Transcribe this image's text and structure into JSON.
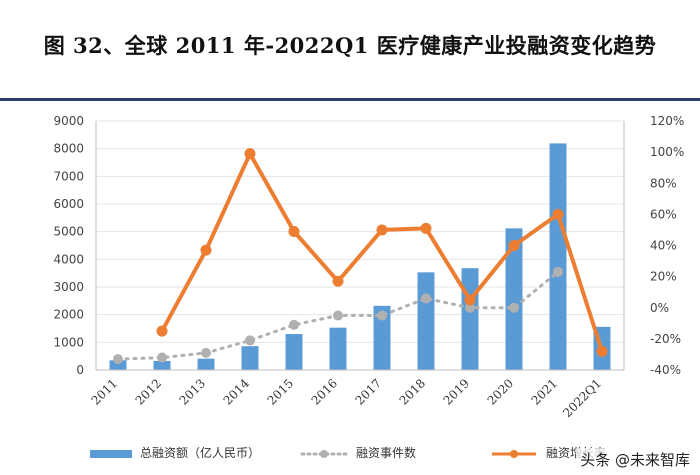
{
  "title": "图 32、全球 2011 年-2022Q1 医疗健康产业投融资变化趋势",
  "watermark": "头条 @未来智库",
  "colors": {
    "bars": "#5b9bd5",
    "events": "#b0b0b0",
    "growth": "#ed7d31",
    "rule": "#2b3d6b"
  },
  "chart_data": {
    "type": "bar",
    "categories": [
      "2011",
      "2012",
      "2013",
      "2014",
      "2015",
      "2016",
      "2017",
      "2018",
      "2019",
      "2020",
      "2021",
      "2022Q1"
    ],
    "ylim": [
      0,
      9000
    ],
    "yticks": [
      "0",
      "1000",
      "2000",
      "3000",
      "4000",
      "5000",
      "6000",
      "7000",
      "8000",
      "9000"
    ],
    "y2lim": [
      -40,
      120
    ],
    "y2ticks": [
      "-40%",
      "-20%",
      "0%",
      "20%",
      "40%",
      "60%",
      "80%",
      "100%",
      "120%"
    ],
    "legend_position": "bottom",
    "series": [
      {
        "name": "总融资额（亿人民币）",
        "type": "bar",
        "axis": "left",
        "values": [
          350,
          330,
          410,
          860,
          1300,
          1530,
          2320,
          3530,
          3680,
          5120,
          8190,
          1560
        ]
      },
      {
        "name": "融资事件数",
        "type": "line",
        "axis": "right",
        "style": "dotted",
        "values": [
          -33,
          -32,
          -29,
          -21,
          -11,
          -5,
          -5,
          6,
          0,
          0,
          23,
          null
        ]
      },
      {
        "name": "融资增长率",
        "type": "line",
        "axis": "right",
        "values": [
          null,
          -15,
          37,
          99,
          49,
          17,
          50,
          51,
          5,
          40,
          60,
          -28
        ]
      }
    ]
  }
}
